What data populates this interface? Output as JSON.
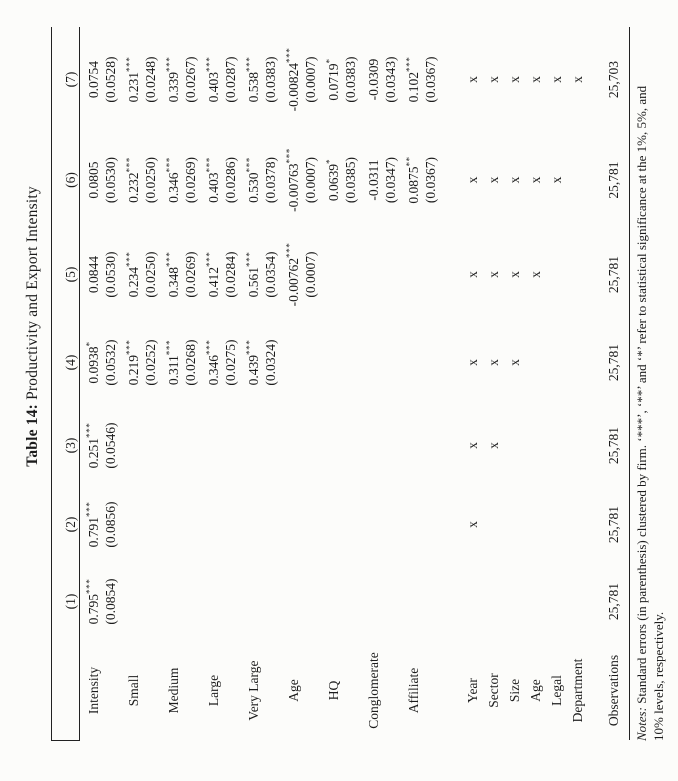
{
  "page": {
    "background": "#fcfcfa",
    "text_color": "#1c1c1c",
    "rule_color": "#222222"
  },
  "table": {
    "title_prefix": "Table 14:",
    "title": "Productivity and Export Intensity",
    "column_headers": [
      "(1)",
      "(2)",
      "(3)",
      "(4)",
      "(5)",
      "(6)",
      "(7)"
    ],
    "coefficient_rows": [
      {
        "label": "Intensity",
        "coef": [
          "0.795***",
          "0.791***",
          "0.251***",
          "0.0938*",
          "0.0844",
          "0.0805",
          "0.0754"
        ],
        "se": [
          "(0.0854)",
          "(0.0856)",
          "(0.0546)",
          "(0.0532)",
          "(0.0530)",
          "(0.0530)",
          "(0.0528)"
        ]
      },
      {
        "label": "Small",
        "coef": [
          "",
          "",
          "",
          "0.219***",
          "0.234***",
          "0.232***",
          "0.231***"
        ],
        "se": [
          "",
          "",
          "",
          "(0.0252)",
          "(0.0250)",
          "(0.0250)",
          "(0.0248)"
        ]
      },
      {
        "label": "Medium",
        "coef": [
          "",
          "",
          "",
          "0.311***",
          "0.348***",
          "0.346***",
          "0.339***"
        ],
        "se": [
          "",
          "",
          "",
          "(0.0268)",
          "(0.0269)",
          "(0.0269)",
          "(0.0267)"
        ]
      },
      {
        "label": "Large",
        "coef": [
          "",
          "",
          "",
          "0.346***",
          "0.412***",
          "0.403***",
          "0.403***"
        ],
        "se": [
          "",
          "",
          "",
          "(0.0275)",
          "(0.0284)",
          "(0.0286)",
          "(0.0287)"
        ]
      },
      {
        "label": "Very Large",
        "coef": [
          "",
          "",
          "",
          "0.439***",
          "0.561***",
          "0.530***",
          "0.538***"
        ],
        "se": [
          "",
          "",
          "",
          "(0.0324)",
          "(0.0354)",
          "(0.0378)",
          "(0.0383)"
        ]
      },
      {
        "label": "Age",
        "coef": [
          "",
          "",
          "",
          "",
          "-0.00762***",
          "-0.00763***",
          "-0.00824***"
        ],
        "se": [
          "",
          "",
          "",
          "",
          "(0.0007)",
          "(0.0007)",
          "(0.0007)"
        ]
      },
      {
        "label": "HQ",
        "coef": [
          "",
          "",
          "",
          "",
          "",
          "0.0639*",
          "0.0719*"
        ],
        "se": [
          "",
          "",
          "",
          "",
          "",
          "(0.0385)",
          "(0.0383)"
        ]
      },
      {
        "label": "Conglomerate",
        "coef": [
          "",
          "",
          "",
          "",
          "",
          "-0.0311",
          "-0.0309"
        ],
        "se": [
          "",
          "",
          "",
          "",
          "",
          "(0.0347)",
          "(0.0343)"
        ]
      },
      {
        "label": "Affiliate",
        "coef": [
          "",
          "",
          "",
          "",
          "",
          "0.0875**",
          "0.102***"
        ],
        "se": [
          "",
          "",
          "",
          "",
          "",
          "(0.0367)",
          "(0.0367)"
        ]
      }
    ],
    "fixed_effect_rows": [
      {
        "label": "Year",
        "marks": [
          "",
          "x",
          "x",
          "x",
          "x",
          "x",
          "x"
        ]
      },
      {
        "label": "Sector",
        "marks": [
          "",
          "",
          "x",
          "x",
          "x",
          "x",
          "x"
        ]
      },
      {
        "label": "Size",
        "marks": [
          "",
          "",
          "",
          "x",
          "x",
          "x",
          "x"
        ]
      },
      {
        "label": "Age",
        "marks": [
          "",
          "",
          "",
          "",
          "x",
          "x",
          "x"
        ]
      },
      {
        "label": "Legal",
        "marks": [
          "",
          "",
          "",
          "",
          "",
          "x",
          "x"
        ]
      },
      {
        "label": "Department",
        "marks": [
          "",
          "",
          "",
          "",
          "",
          "",
          "x"
        ]
      }
    ],
    "observations_row": {
      "label": "Observations",
      "values": [
        "25,781",
        "25,781",
        "25,781",
        "25,781",
        "25,781",
        "25,781",
        "25,703"
      ]
    }
  },
  "notes": {
    "label": "Notes:",
    "line1": "Standard errors (in parenthesis) clustered by firm. ‘***’, ‘**’ and ‘*’ refer to statistical significance at the 1%, 5%, and",
    "line2": "10% levels, respectively."
  }
}
